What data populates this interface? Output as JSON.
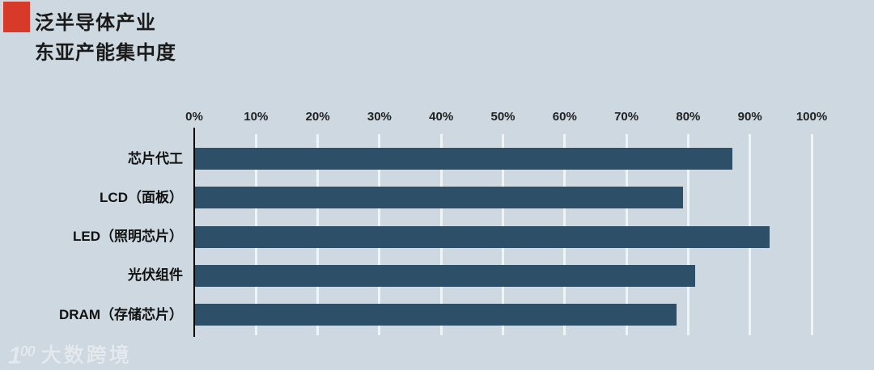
{
  "header": {
    "title_line1": "泛半导体产业",
    "title_line2": "东亚产能集中度"
  },
  "chart_data": {
    "type": "bar",
    "orientation": "horizontal",
    "title": "泛半导体产业 东亚产能集中度",
    "categories": [
      "芯片代工",
      "LCD（面板）",
      "LED（照明芯片）",
      "光伏组件",
      "DRAM（存储芯片）"
    ],
    "values": [
      87,
      79,
      93,
      81,
      78
    ],
    "unit": "%",
    "x_ticks": [
      "0%",
      "10%",
      "20%",
      "30%",
      "40%",
      "50%",
      "60%",
      "70%",
      "80%",
      "90%",
      "100%"
    ],
    "xlim": [
      0,
      100
    ],
    "grid": true,
    "legend": "none",
    "bar_color": "#2e4f68",
    "background_color": "#cdd8e1",
    "accent_color": "#d83a2a"
  },
  "watermark": {
    "logo_leading": "1",
    "logo_oo": "00",
    "text": "大数跨境"
  }
}
